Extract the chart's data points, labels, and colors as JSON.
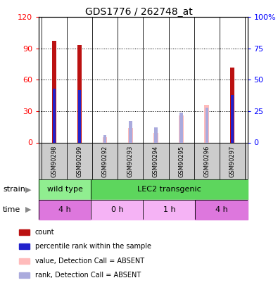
{
  "title": "GDS1776 / 262748_at",
  "samples": [
    "GSM90298",
    "GSM90299",
    "GSM90292",
    "GSM90293",
    "GSM90294",
    "GSM90295",
    "GSM90296",
    "GSM90297"
  ],
  "count_values": [
    97,
    93,
    0,
    0,
    0,
    0,
    0,
    72
  ],
  "rank_values": [
    43,
    42,
    0,
    0,
    0,
    0,
    0,
    38
  ],
  "absent_value": [
    0,
    0,
    5,
    14,
    9,
    26,
    36,
    0
  ],
  "absent_rank": [
    0,
    0,
    6,
    17,
    12,
    24,
    28,
    0
  ],
  "left_ylim": [
    0,
    120
  ],
  "right_ylim": [
    0,
    100
  ],
  "left_yticks": [
    0,
    30,
    60,
    90,
    120
  ],
  "right_yticks": [
    0,
    25,
    50,
    75,
    100
  ],
  "right_yticklabels": [
    "0",
    "25",
    "50",
    "75",
    "100%"
  ],
  "strain_wild_color": "#90ee90",
  "strain_lec2_color": "#5dd65d",
  "time_4h_color": "#dd77dd",
  "time_other_color": "#f5b3f5",
  "count_color": "#bb1111",
  "rank_color": "#2222cc",
  "absent_val_color": "#ffbbbb",
  "absent_rank_color": "#aaaadd",
  "legend_items": [
    {
      "color": "#bb1111",
      "label": "count"
    },
    {
      "color": "#2222cc",
      "label": "percentile rank within the sample"
    },
    {
      "color": "#ffbbbb",
      "label": "value, Detection Call = ABSENT"
    },
    {
      "color": "#aaaadd",
      "label": "rank, Detection Call = ABSENT"
    }
  ],
  "bar_width": 0.18,
  "rank_bar_width": 0.12,
  "figsize": [
    3.95,
    4.05
  ],
  "dpi": 100
}
